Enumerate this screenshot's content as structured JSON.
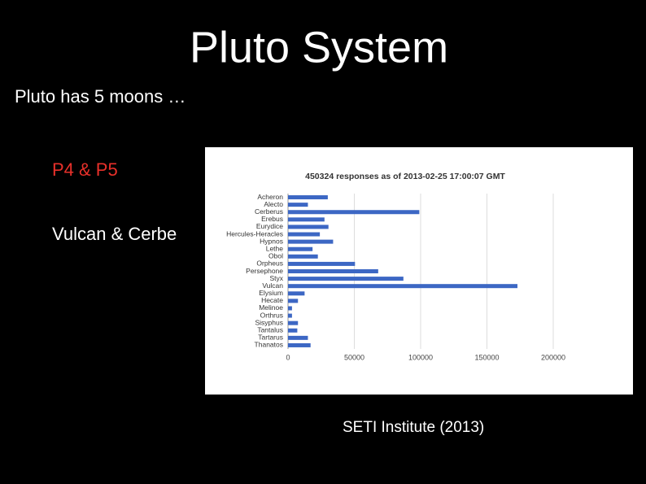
{
  "slide": {
    "title": "Pluto System",
    "subtitle": "Pluto has 5 moons …",
    "bullets": [
      "P4 & P5",
      "Vulcan & Cerbe"
    ],
    "source": "SETI Institute (2013)"
  },
  "chart_data": {
    "type": "bar",
    "orientation": "horizontal",
    "title": "450324 responses as of 2013-02-25 17:00:07 GMT",
    "categories": [
      "Acheron",
      "Alecto",
      "Cerberus",
      "Erebus",
      "Eurydice",
      "Hercules-Heracles",
      "Hypnos",
      "Lethe",
      "Obol",
      "Orpheus",
      "Persephone",
      "Styx",
      "Vulcan",
      "Elysium",
      "Hecate",
      "Melinoe",
      "Orthrus",
      "Sisyphus",
      "Tantalus",
      "Tartarus",
      "Thanatos"
    ],
    "values": [
      30000,
      15000,
      99000,
      27500,
      30500,
      24000,
      34000,
      18500,
      22500,
      50500,
      68000,
      87000,
      173000,
      12500,
      7500,
      3000,
      3000,
      7500,
      7000,
      15000,
      17000
    ],
    "color": "#3c67c4",
    "xlim": [
      0,
      200000
    ],
    "xticks": [
      0,
      50000,
      100000,
      150000,
      200000
    ],
    "grid": true
  }
}
